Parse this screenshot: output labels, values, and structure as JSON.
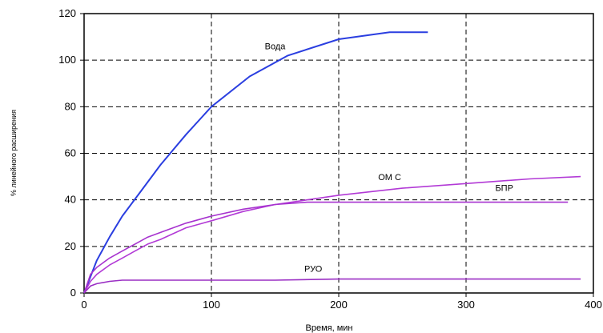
{
  "chart_data": {
    "type": "line",
    "xlabel": "Время, мин",
    "ylabel": "% линейного расширения",
    "title": "",
    "xlim": [
      0,
      400
    ],
    "ylim": [
      0,
      120
    ],
    "xticks": [
      0,
      100,
      200,
      300,
      400
    ],
    "yticks": [
      0,
      20,
      40,
      60,
      80,
      100,
      120
    ],
    "grid": true,
    "legend": "none (series labelled directly on the curves)",
    "series": [
      {
        "name": "Вода",
        "color": "#2a3ee0",
        "x": [
          0,
          5,
          10,
          20,
          30,
          45,
          60,
          80,
          100,
          130,
          160,
          200,
          240,
          270
        ],
        "y": [
          0,
          7,
          14,
          24,
          33,
          44,
          55,
          68,
          80,
          93,
          102,
          109,
          112,
          112
        ]
      },
      {
        "name": "ОМ С",
        "color": "#b23ad6",
        "x": [
          0,
          5,
          10,
          20,
          30,
          40,
          50,
          60,
          80,
          100,
          125,
          150,
          175,
          200,
          250,
          300,
          350,
          390
        ],
        "y": [
          0,
          5,
          8,
          12,
          15,
          18,
          21,
          23,
          28,
          31,
          35,
          38,
          40,
          42,
          45,
          47,
          49,
          50
        ]
      },
      {
        "name": "БПР",
        "color": "#a733cf",
        "x": [
          0,
          5,
          10,
          20,
          30,
          40,
          50,
          60,
          80,
          100,
          125,
          150,
          175,
          200,
          250,
          300,
          350,
          380
        ],
        "y": [
          0,
          8,
          11,
          15,
          18,
          21,
          24,
          26,
          30,
          33,
          36,
          38,
          39,
          39,
          39,
          39,
          39,
          39
        ]
      },
      {
        "name": "РУО",
        "color": "#9a2ec4",
        "x": [
          0,
          5,
          10,
          20,
          30,
          50,
          100,
          150,
          200,
          250,
          300,
          350,
          390
        ],
        "y": [
          0,
          3,
          4,
          5,
          5.5,
          5.5,
          5.5,
          5.5,
          6,
          6,
          6,
          6,
          6
        ]
      }
    ]
  }
}
